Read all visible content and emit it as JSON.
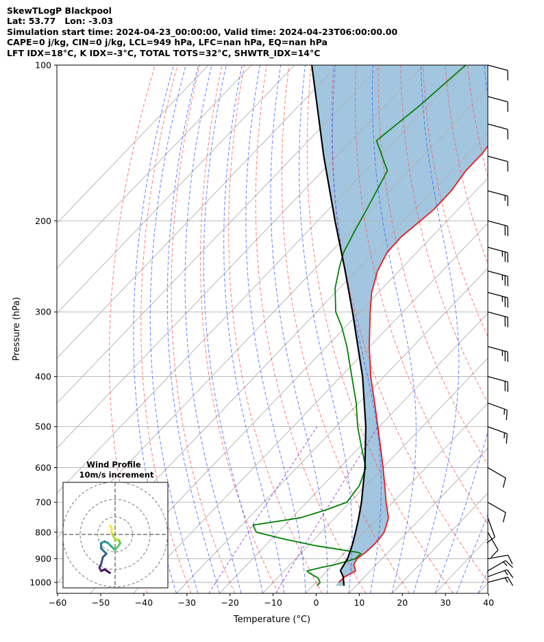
{
  "header": {
    "line1": "SkewTLogP Blackpool",
    "line2": "Lat: 53.77   Lon: -3.03",
    "line3": "Simulation start time: 2024-04-23_00:00:00, Valid time: 2024-04-23T06:00:00.00",
    "line4": "CAPE=0 j/kg, CIN=0 j/kg, LCL=949 hPa, LFC=nan hPa, EQ=nan hPa",
    "line5": "LFT IDX=18°C, K IDX=-3°C, TOTAL TOTS=32°C, SHWTR_IDX=14°C"
  },
  "inset": {
    "title": "Wind Profile",
    "subtitle": "10m/s increment"
  },
  "colors": {
    "temperature": "#e31a1c",
    "dewpoint": "#008000",
    "parcel": "#000000",
    "cape_fill": "#a2c6e0",
    "dry_adiabat": "#ff4d4d",
    "moist_adiabat": "#3355ff",
    "mixing_ratio": "#9b30d0",
    "isotherm": "#b0b0b0",
    "barb": "#000000"
  },
  "chart_data": {
    "type": "line",
    "diagram": "skew-T log-P",
    "xlabel": "Temperature (°C)",
    "ylabel": "Pressure (hPa)",
    "xlim": [
      -60,
      40
    ],
    "ylim": [
      1050,
      100
    ],
    "yscale": "log",
    "grid": true,
    "xticks": [
      "−60",
      "−50",
      "−40",
      "−30",
      "−20",
      "−10",
      "0",
      "10",
      "20",
      "30",
      "40"
    ],
    "xtick_values": [
      -60,
      -50,
      -40,
      -30,
      -20,
      -10,
      0,
      10,
      20,
      30,
      40
    ],
    "yticks": [
      "100",
      "200",
      "300",
      "400",
      "500",
      "600",
      "700",
      "800",
      "900",
      "1000"
    ],
    "ytick_values": [
      100,
      200,
      300,
      400,
      500,
      600,
      700,
      800,
      900,
      1000
    ],
    "series": [
      {
        "role": "temperature",
        "points": [
          [
            1000,
            5.2
          ],
          [
            975,
            5.4
          ],
          [
            950,
            6.6
          ],
          [
            925,
            4.8
          ],
          [
            900,
            4.2
          ],
          [
            875,
            4.8
          ],
          [
            850,
            5.0
          ],
          [
            825,
            5.0
          ],
          [
            800,
            4.6
          ],
          [
            775,
            3.6
          ],
          [
            750,
            2.4
          ],
          [
            700,
            -1.6
          ],
          [
            650,
            -5.6
          ],
          [
            600,
            -10.0
          ],
          [
            550,
            -14.9
          ],
          [
            500,
            -20.3
          ],
          [
            450,
            -26.3
          ],
          [
            400,
            -33.1
          ],
          [
            350,
            -40.1
          ],
          [
            300,
            -47.6
          ],
          [
            275,
            -51.6
          ],
          [
            250,
            -55.0
          ],
          [
            230,
            -56.9
          ],
          [
            215,
            -57.1
          ],
          [
            200,
            -56.2
          ],
          [
            190,
            -55.6
          ],
          [
            175,
            -55.7
          ],
          [
            160,
            -56.8
          ],
          [
            148,
            -56.8
          ],
          [
            140,
            -57.4
          ],
          [
            130,
            -58.5
          ],
          [
            120,
            -60.1
          ],
          [
            110,
            -61.3
          ],
          [
            100,
            -61.8
          ]
        ]
      },
      {
        "role": "dewpoint",
        "points": [
          [
            1015,
            0.9
          ],
          [
            1000,
            0.9
          ],
          [
            980,
            -0.6
          ],
          [
            960,
            -3.6
          ],
          [
            950,
            -4.7
          ],
          [
            935,
            -2.0
          ],
          [
            925,
            0.3
          ],
          [
            900,
            3.8
          ],
          [
            880,
            4.0
          ],
          [
            875,
            3.0
          ],
          [
            850,
            -8.0
          ],
          [
            825,
            -17.0
          ],
          [
            800,
            -25.0
          ],
          [
            775,
            -27.4
          ],
          [
            750,
            -18.0
          ],
          [
            725,
            -14.0
          ],
          [
            700,
            -10.7
          ],
          [
            650,
            -11.5
          ],
          [
            600,
            -14.0
          ],
          [
            550,
            -19.3
          ],
          [
            500,
            -25.0
          ],
          [
            450,
            -30.6
          ],
          [
            400,
            -37.5
          ],
          [
            350,
            -45.3
          ],
          [
            320,
            -51.0
          ],
          [
            300,
            -55.6
          ],
          [
            270,
            -61.0
          ],
          [
            245,
            -64.8
          ],
          [
            230,
            -67.0
          ],
          [
            210,
            -69.1
          ],
          [
            190,
            -71.2
          ],
          [
            175,
            -73.0
          ],
          [
            160,
            -75.0
          ],
          [
            140,
            -84.2
          ],
          [
            120,
            -82.0
          ],
          [
            100,
            -80.3
          ]
        ]
      },
      {
        "role": "parcel",
        "points": [
          [
            1015,
            7.2
          ],
          [
            975,
            5.0
          ],
          [
            949,
            3.0
          ],
          [
            900,
            2.0
          ],
          [
            850,
            0.2
          ],
          [
            800,
            -2.0
          ],
          [
            750,
            -4.5
          ],
          [
            700,
            -7.3
          ],
          [
            600,
            -14.2
          ],
          [
            500,
            -23.1
          ],
          [
            400,
            -35.0
          ],
          [
            300,
            -51.7
          ],
          [
            250,
            -62.5
          ],
          [
            200,
            -76.0
          ],
          [
            150,
            -93.0
          ],
          [
            100,
            -116.0
          ]
        ]
      }
    ],
    "wind_barbs": [
      {
        "p": 1000,
        "speed_kt": 15,
        "dir": 255
      },
      {
        "p": 975,
        "speed_kt": 15,
        "dir": 250
      },
      {
        "p": 950,
        "speed_kt": 15,
        "dir": 240
      },
      {
        "p": 900,
        "speed_kt": 10,
        "dir": 260
      },
      {
        "p": 800,
        "speed_kt": 10,
        "dir": 330
      },
      {
        "p": 750,
        "speed_kt": 10,
        "dir": 340
      },
      {
        "p": 700,
        "speed_kt": 10,
        "dir": 300
      },
      {
        "p": 600,
        "speed_kt": 10,
        "dir": 300
      },
      {
        "p": 500,
        "speed_kt": 15,
        "dir": 290
      },
      {
        "p": 450,
        "speed_kt": 15,
        "dir": 290
      },
      {
        "p": 400,
        "speed_kt": 20,
        "dir": 285
      },
      {
        "p": 350,
        "speed_kt": 25,
        "dir": 285
      },
      {
        "p": 300,
        "speed_kt": 20,
        "dir": 285
      },
      {
        "p": 275,
        "speed_kt": 25,
        "dir": 285
      },
      {
        "p": 250,
        "speed_kt": 25,
        "dir": 285
      },
      {
        "p": 225,
        "speed_kt": 25,
        "dir": 285
      },
      {
        "p": 200,
        "speed_kt": 20,
        "dir": 285
      },
      {
        "p": 175,
        "speed_kt": 15,
        "dir": 285
      },
      {
        "p": 150,
        "speed_kt": 10,
        "dir": 285
      },
      {
        "p": 130,
        "speed_kt": 10,
        "dir": 285
      },
      {
        "p": 115,
        "speed_kt": 10,
        "dir": 285
      },
      {
        "p": 100,
        "speed_kt": 10,
        "dir": 285
      }
    ],
    "hodograph": {
      "rings_ms": [
        10,
        20,
        30
      ],
      "points_ms": [
        [
          -3,
          -22
        ],
        [
          -6,
          -20
        ],
        [
          -8,
          -21
        ],
        [
          -9,
          -19
        ],
        [
          -8,
          -17
        ],
        [
          -7,
          -13
        ],
        [
          -5,
          -11
        ],
        [
          -8,
          -8
        ],
        [
          -8,
          -5
        ],
        [
          -6,
          -4
        ],
        [
          -4,
          -5
        ],
        [
          -2,
          -7
        ],
        [
          0,
          -9
        ],
        [
          3,
          -5
        ],
        [
          2,
          -3
        ],
        [
          0,
          -3
        ],
        [
          -2,
          1
        ],
        [
          -2,
          4
        ],
        [
          -3,
          5
        ]
      ]
    }
  }
}
